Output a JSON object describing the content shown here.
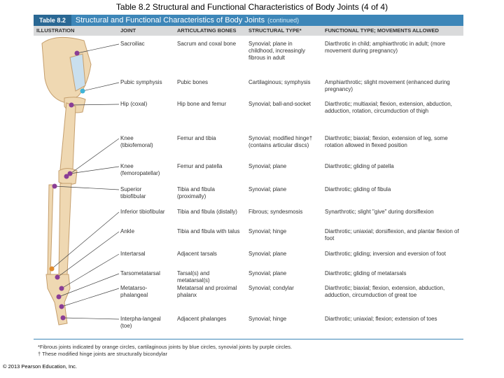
{
  "title": "Table 8.2 Structural and Functional Characteristics of Body Joints (4 of 4)",
  "banner": {
    "number": "Table 8.2",
    "title": "Structural and Functional Characteristics of Body Joints",
    "note": "(continued)"
  },
  "table": {
    "headers": [
      "ILLUSTRATION",
      "JOINT",
      "ARTICULATING BONES",
      "STRUCTURAL TYPE*",
      "FUNCTIONAL TYPE; MOVEMENTS ALLOWED"
    ],
    "rows": [
      [
        "Sacroiliac",
        "Sacrum and coxal bone",
        "Synovial; plane in childhood, increasingly fibrous in adult",
        "Diarthrotic in child; amphiarthrotic in adult; (more movement during pregnancy)"
      ],
      [
        "Pubic symphysis",
        "Pubic bones",
        "Cartilaginous; symphysis",
        "Amphiarthrotic; slight movement (enhanced during pregnancy)"
      ],
      [
        "Hip (coxal)",
        "Hip bone and femur",
        "Synovial; ball-and-socket",
        "Diarthrotic; multiaxial; flexion, extension, abduction, adduction, rotation, circumduction of thigh"
      ],
      [
        "Knee (tibiofemoral)",
        "Femur and tibia",
        "Synovial; modified hinge† (contains articular discs)",
        "Diarthrotic; biaxial; flexion, extension of leg, some rotation allowed in flexed position"
      ],
      [
        "Knee (femoropatellar)",
        "Femur and patella",
        "Synovial; plane",
        "Diarthrotic; gliding of patella"
      ],
      [
        "Superior tibiofibular",
        "Tibia and fibula (proximally)",
        "Synovial; plane",
        "Diarthrotic; gliding of fibula"
      ],
      [
        "Inferior tibiofibular",
        "Tibia and fibula (distally)",
        "Fibrous; syndesmosis",
        "Synarthrotic; slight \"give\" during dorsiflexion"
      ],
      [
        "Ankle",
        "Tibia and fibula with talus",
        "Synovial; hinge",
        "Diarthrotic; uniaxial; dorsiflexion, and plantar flexion of foot"
      ],
      [
        "Intertarsal",
        "Adjacent tarsals",
        "Synovial; plane",
        "Diarthrotic; gliding; inversion and eversion of foot"
      ],
      [
        "Tarsometatarsal",
        "Tarsal(s) and metatarsal(s)",
        "Synovial; plane",
        "Diarthrotic; gliding of metatarsals"
      ],
      [
        "Metatarso-phalangeal",
        "Metatarsal and proximal phalanx",
        "Synovial; condylar",
        "Diarthrotic; biaxial; flexion, extension, abduction, adduction, circumduction of great toe"
      ],
      [
        "Interpha-langeal (toe)",
        "Adjacent phalanges",
        "Synovial; hinge",
        "Diarthrotic; uniaxial; flexion; extension of toes"
      ]
    ]
  },
  "footnotes": [
    "*Fibrous joints indicated by orange circles, cartilaginous joints by blue circles, synovial joints by purple circles.",
    "† These modified hinge joints are structurally bicondylar"
  ],
  "copyright": "© 2013 Pearson Education, Inc."
}
